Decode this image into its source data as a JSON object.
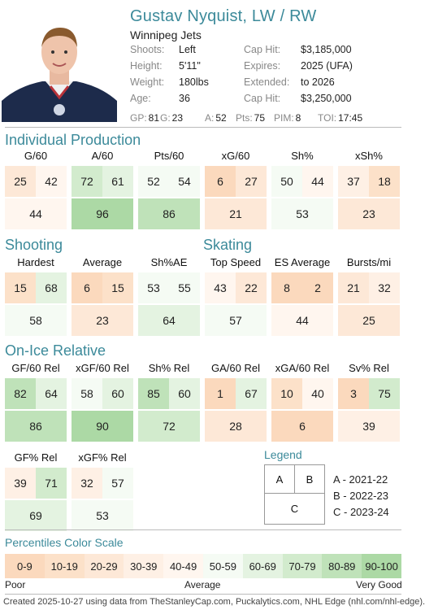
{
  "player": {
    "name": "Gustav Nyquist, LW / RW",
    "team": "Winnipeg Jets"
  },
  "bio_left": [
    {
      "key": "Shoots:",
      "value": "Left"
    },
    {
      "key": "Height:",
      "value": "5'11\""
    },
    {
      "key": "Weight:",
      "value": "180lbs"
    },
    {
      "key": "Age:",
      "value": "36"
    }
  ],
  "bio_right": [
    {
      "key": "Cap Hit:",
      "value": "$3,185,000"
    },
    {
      "key": "Expires:",
      "value": "2025 (UFA)"
    },
    {
      "key": "Extended:",
      "value": "to 2026"
    },
    {
      "key": "Cap Hit:",
      "value": "$3,250,000"
    }
  ],
  "statline": [
    {
      "key": "GP:",
      "value": "81"
    },
    {
      "key": "G:",
      "value": "23"
    },
    {
      "key": "A:",
      "value": "52"
    },
    {
      "key": "Pts:",
      "value": "75"
    },
    {
      "key": "PIM:",
      "value": "8"
    },
    {
      "key": "TOI:",
      "value": "17:45"
    }
  ],
  "sections": {
    "individual": "Individual Production",
    "shooting": "Shooting",
    "skating": "Skating",
    "onice": "On-Ice Relative"
  },
  "metrics": {
    "individual": [
      {
        "label": "G/60",
        "a": 25,
        "b": 42,
        "c": 44
      },
      {
        "label": "A/60",
        "a": 72,
        "b": 61,
        "c": 96
      },
      {
        "label": "Pts/60",
        "a": 52,
        "b": 54,
        "c": 86
      },
      {
        "label": "xG/60",
        "a": 6,
        "b": 27,
        "c": 21
      },
      {
        "label": "Sh%",
        "a": 50,
        "b": 44,
        "c": 53
      },
      {
        "label": "xSh%",
        "a": 37,
        "b": 18,
        "c": 23
      }
    ],
    "shooting": [
      {
        "label": "Hardest",
        "a": 15,
        "b": 68,
        "c": 58
      },
      {
        "label": "Average",
        "a": 6,
        "b": 15,
        "c": 23
      },
      {
        "label": "Sh%AE",
        "a": 53,
        "b": 55,
        "c": 64
      }
    ],
    "skating": [
      {
        "label": "Top Speed",
        "a": 43,
        "b": 22,
        "c": 57
      },
      {
        "label": "ES Average",
        "a": 8,
        "b": 2,
        "c": 44
      },
      {
        "label": "Bursts/mi",
        "a": 21,
        "b": 32,
        "c": 25
      }
    ],
    "onice": [
      {
        "label": "GF/60 Rel",
        "a": 82,
        "b": 64,
        "c": 86
      },
      {
        "label": "xGF/60 Rel",
        "a": 58,
        "b": 60,
        "c": 90
      },
      {
        "label": "Sh% Rel",
        "a": 85,
        "b": 60,
        "c": 72
      },
      {
        "label": "GA/60 Rel",
        "a": 1,
        "b": 67,
        "c": 28
      },
      {
        "label": "xGA/60 Rel",
        "a": 10,
        "b": 40,
        "c": 6
      },
      {
        "label": "Sv% Rel",
        "a": 3,
        "b": 75,
        "c": 39
      }
    ],
    "onice2": [
      {
        "label": "GF% Rel",
        "a": 39,
        "b": 71,
        "c": 69
      },
      {
        "label": "xGF% Rel",
        "a": 32,
        "b": 57,
        "c": 53
      }
    ]
  },
  "legend": {
    "title": "Legend",
    "a": "A",
    "b": "B",
    "c": "C",
    "a_text": "A - 2021-22",
    "b_text": "B - 2022-23",
    "c_text": "C - 2023-24"
  },
  "scale": {
    "title": "Percentiles Color Scale",
    "bins": [
      {
        "label": "0-9",
        "color": "#fbd9bd"
      },
      {
        "label": "10-19",
        "color": "#fce1c9"
      },
      {
        "label": "20-29",
        "color": "#fde8d7"
      },
      {
        "label": "30-39",
        "color": "#fef0e5"
      },
      {
        "label": "40-49",
        "color": "#fff6ef"
      },
      {
        "label": "50-59",
        "color": "#f5fbf4"
      },
      {
        "label": "60-69",
        "color": "#e4f3e1"
      },
      {
        "label": "70-79",
        "color": "#d2ebcd"
      },
      {
        "label": "80-89",
        "color": "#bfe2b9"
      },
      {
        "label": "90-100",
        "color": "#acd9a5"
      }
    ],
    "poor": "Poor",
    "average": "Average",
    "very_good": "Very Good"
  },
  "footer": "Created 2025-10-27 using data from TheStanleyCap.com, Puckalytics.com, NHL Edge (nhl.com/nhl-edge)."
}
